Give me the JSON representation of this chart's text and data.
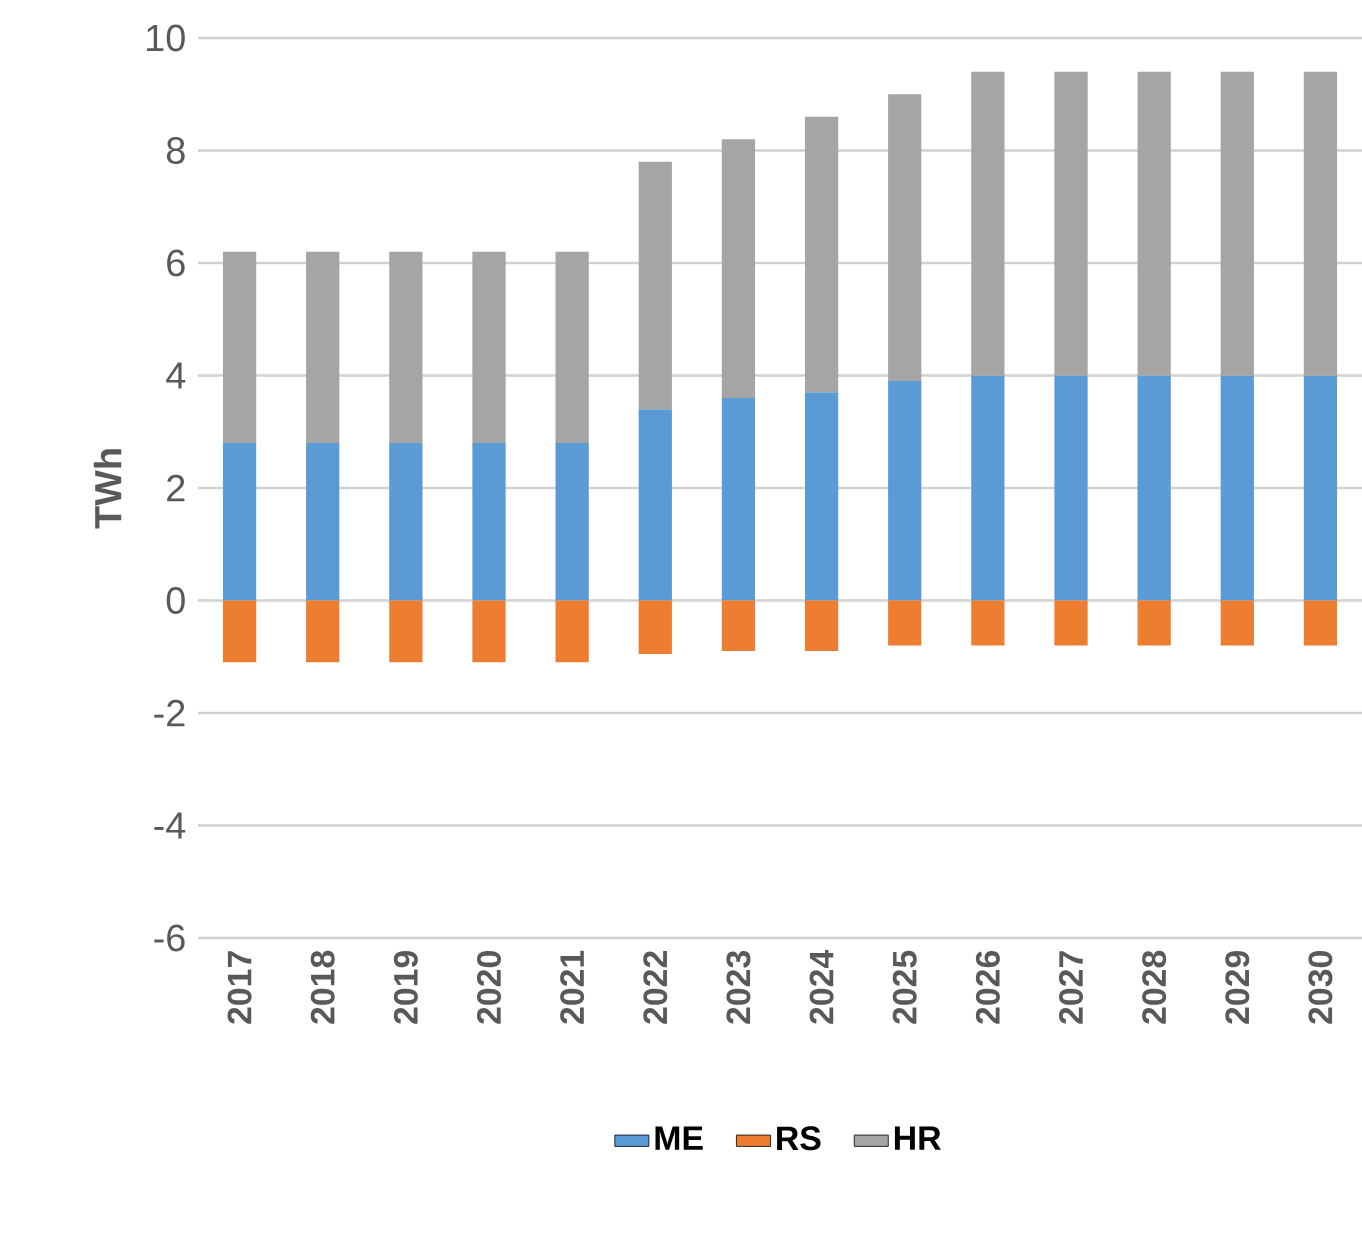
{
  "chart_data": {
    "type": "bar",
    "ylabel": "TWh",
    "stacked": true,
    "grid": "y",
    "legend": "bottom",
    "categories": [
      "2017",
      "2018",
      "2019",
      "2020",
      "2021",
      "2022",
      "2023",
      "2024",
      "2025",
      "2026",
      "2027",
      "2028",
      "2029",
      "2030"
    ],
    "series": [
      {
        "name": "ME",
        "color": "#5b9bd5",
        "values": [
          2.8,
          2.8,
          2.8,
          2.8,
          2.8,
          3.4,
          3.6,
          3.7,
          3.9,
          4.0,
          4.0,
          4.0,
          4.0,
          4.0
        ]
      },
      {
        "name": "RS",
        "color": "#ed7d31",
        "values": [
          -1.1,
          -1.1,
          -1.1,
          -1.1,
          -1.1,
          -0.95,
          -0.9,
          -0.9,
          -0.8,
          -0.8,
          -0.8,
          -0.8,
          -0.8,
          -0.8
        ]
      },
      {
        "name": "HR",
        "color": "#a5a5a5",
        "values": [
          3.4,
          3.4,
          3.4,
          3.4,
          3.4,
          4.4,
          4.6,
          4.9,
          5.1,
          5.4,
          5.4,
          5.4,
          5.4,
          5.4
        ]
      }
    ],
    "ylim": [
      -6,
      10
    ],
    "yticks": [
      -6,
      -4,
      -2,
      0,
      2,
      4,
      6,
      8,
      10
    ]
  }
}
